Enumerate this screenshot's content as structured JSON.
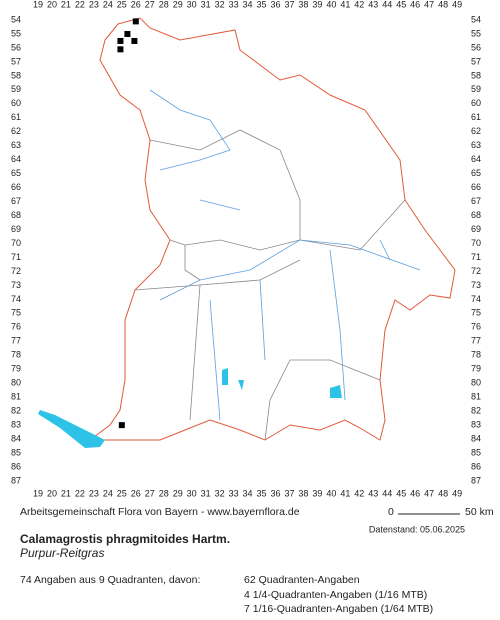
{
  "header": {
    "credit": "Arbeitsgemeinschaft Flora von Bayern - www.bayernflora.de",
    "date": "Datenstand: 05.06.2025",
    "title": "Calamagrostis phragmitoides Hartm.",
    "subtitle": "Purpur-Reitgras"
  },
  "scale": {
    "start": "0",
    "end": "50 km"
  },
  "stats": {
    "summary": "74 Angaben aus 9 Quadranten, davon:",
    "lines": [
      "62 Quadranten-Angaben",
      "4 1/4-Quadranten-Angaben (1/16 MTB)",
      "7 1/16-Quadranten-Angaben (1/64 MTB)"
    ]
  },
  "grid": {
    "columns": [
      19,
      20,
      21,
      22,
      23,
      24,
      25,
      26,
      27,
      28,
      29,
      30,
      31,
      32,
      33,
      34,
      35,
      36,
      37,
      38,
      39,
      40,
      41,
      42,
      43,
      44,
      45,
      46,
      47,
      48,
      49
    ],
    "rows": [
      54,
      55,
      56,
      57,
      58,
      59,
      60,
      61,
      62,
      63,
      64,
      65,
      66,
      67,
      68,
      69,
      70,
      71,
      72,
      73,
      74,
      75,
      76,
      77,
      78,
      79,
      80,
      81,
      82,
      83,
      84,
      85,
      86,
      87
    ]
  },
  "occurrences": [
    {
      "x": 26,
      "y": 54.1
    },
    {
      "x": 25.4,
      "y": 55
    },
    {
      "x": 24.9,
      "y": 55.5
    },
    {
      "x": 25.9,
      "y": 55.5
    },
    {
      "x": 24.9,
      "y": 56.1
    },
    {
      "x": 25,
      "y": 83
    }
  ]
}
